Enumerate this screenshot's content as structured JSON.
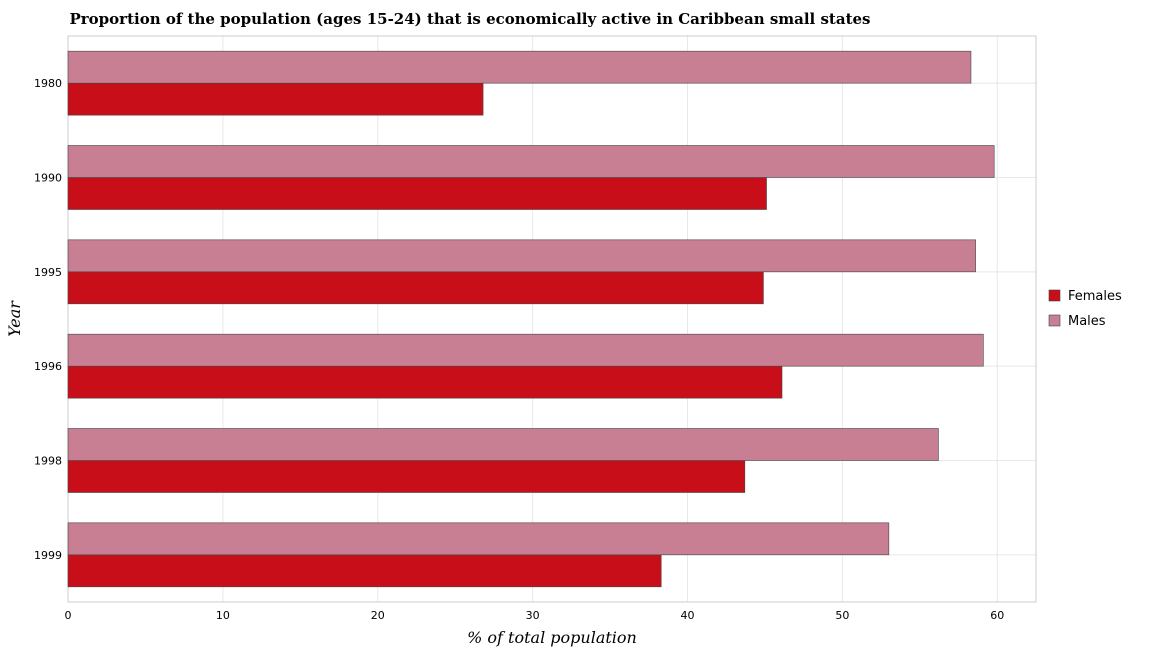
{
  "chart_data": {
    "type": "bar",
    "orientation": "horizontal",
    "title": "Proportion of the population (ages 15-24) that is economically active in Caribbean small states",
    "xlabel": "% of total population",
    "ylabel": "Year",
    "categories": [
      "1980",
      "1990",
      "1995",
      "1996",
      "1998",
      "1999"
    ],
    "series": [
      {
        "name": "Females",
        "color": "#c80f19",
        "values": [
          26.8,
          45.1,
          44.9,
          46.1,
          43.7,
          38.3
        ]
      },
      {
        "name": "Males",
        "color": "#c87e93",
        "values": [
          58.3,
          59.8,
          58.6,
          59.1,
          56.2,
          53.0
        ]
      }
    ],
    "xlim": [
      0,
      62.5
    ],
    "xticks": [
      "0",
      "10",
      "20",
      "30",
      "40",
      "50",
      "60"
    ],
    "grid": true,
    "legend_position": "right"
  }
}
